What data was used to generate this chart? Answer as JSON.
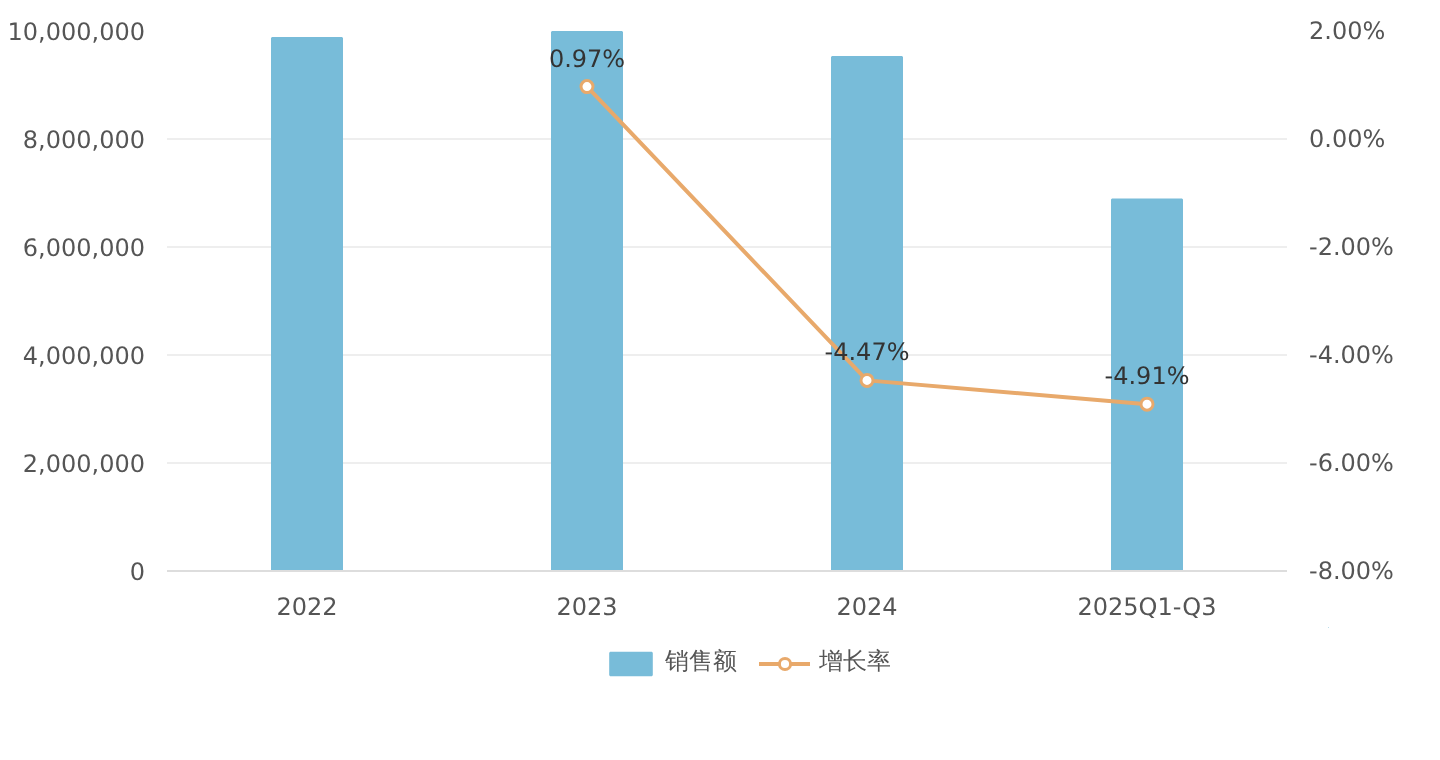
{
  "chart_data": {
    "type": "bar",
    "categories": [
      "2022",
      "2023",
      "2024",
      "2025Q1-Q3"
    ],
    "series": [
      {
        "name": "销售额",
        "color": "#78bcd9",
        "values": [
          9870000,
          9980000,
          9520000,
          6880000
        ]
      },
      {
        "name": "增长率",
        "type": "line",
        "axis": "y2",
        "color": "#e8a96b",
        "marker": "circle",
        "values": [
          null,
          0.97,
          -4.47,
          -4.91
        ],
        "value_labels": [
          null,
          "0.97%",
          "-4.47%",
          "-4.91%"
        ]
      }
    ],
    "ylim": [
      0,
      10000000
    ],
    "yticks": [
      0,
      {
        "value": 2000000,
        "label": "2,000,000"
      },
      {
        "value": 4000000,
        "label": "4,000,000"
      },
      {
        "value": 6000000,
        "label": "6,000,000"
      },
      {
        "value": 8000000,
        "label": "8,000,000"
      },
      {
        "value": 10000000,
        "label": "10,000,000"
      }
    ],
    "y2lim": [
      -8,
      2
    ],
    "y2ticks": [
      {
        "value": -8,
        "label": "-8.00%"
      },
      {
        "value": -6,
        "label": "-6.00%"
      },
      {
        "value": -4,
        "label": "-4.00%"
      },
      {
        "value": -2,
        "label": "-2.00%"
      },
      {
        "value": 0,
        "label": "0.00%"
      },
      {
        "value": 2,
        "label": "2.00%"
      }
    ],
    "grid": "y",
    "legend": "bottom"
  }
}
